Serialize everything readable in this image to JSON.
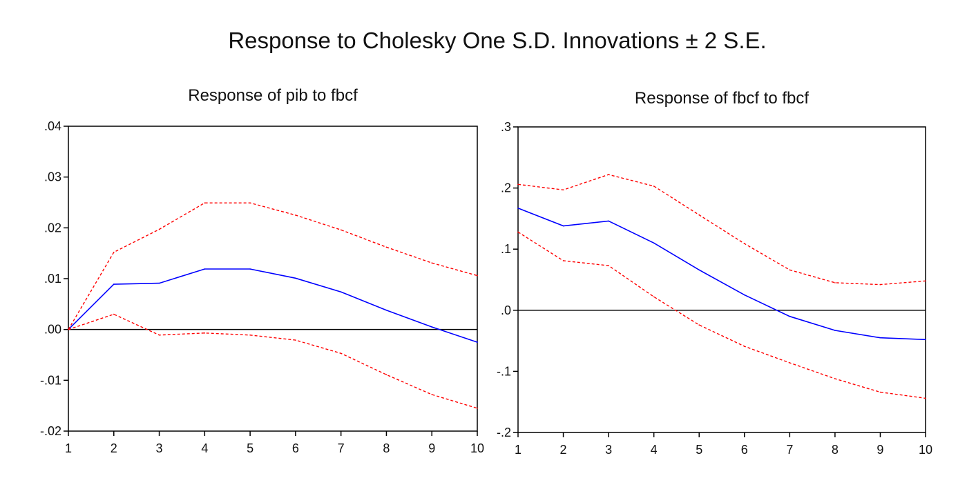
{
  "title": "Response to Cholesky One S.D. Innovations ± 2 S.E.",
  "colors": {
    "response": "#0000ff",
    "bands": "#ff0000",
    "axes": "#000000",
    "zero_line": "#000000"
  },
  "chart_data": [
    {
      "type": "line",
      "title": "Response of pib to fbcf",
      "xlabel": "",
      "ylabel": "",
      "grid": false,
      "x": [
        1,
        2,
        3,
        4,
        5,
        6,
        7,
        8,
        9,
        10
      ],
      "xlim": [
        1,
        10
      ],
      "ylim": [
        -0.02,
        0.04
      ],
      "yticks": [
        0.04,
        0.03,
        0.02,
        0.01,
        0.0,
        -0.01,
        -0.02
      ],
      "ytick_labels": [
        ".04",
        ".03",
        ".02",
        ".01",
        ".00",
        "-.01",
        "-.02"
      ],
      "xtick_labels": [
        "1",
        "2",
        "3",
        "4",
        "5",
        "6",
        "7",
        "8",
        "9",
        "10"
      ],
      "zero_line": 0,
      "series": [
        {
          "role": "response",
          "style": "solid",
          "color": "#0000ff",
          "values": [
            0.0,
            0.0089,
            0.0091,
            0.0119,
            0.0119,
            0.0101,
            0.0074,
            0.0038,
            0.0005,
            -0.0025
          ]
        },
        {
          "role": "upper",
          "style": "dashed",
          "color": "#ff0000",
          "values": [
            0.0,
            0.0152,
            0.0197,
            0.0249,
            0.0249,
            0.0225,
            0.0196,
            0.0162,
            0.0131,
            0.0106
          ]
        },
        {
          "role": "lower",
          "style": "dashed",
          "color": "#ff0000",
          "values": [
            0.0,
            0.003,
            -0.0011,
            -0.0007,
            -0.0011,
            -0.0021,
            -0.0047,
            -0.0089,
            -0.0128,
            -0.0155
          ]
        }
      ]
    },
    {
      "type": "line",
      "title": "Response of fbcf to fbcf",
      "xlabel": "",
      "ylabel": "",
      "grid": false,
      "x": [
        1,
        2,
        3,
        4,
        5,
        6,
        7,
        8,
        9,
        10
      ],
      "xlim": [
        1,
        10
      ],
      "ylim": [
        -0.2,
        0.3
      ],
      "yticks": [
        0.3,
        0.2,
        0.1,
        0.0,
        -0.1,
        -0.2
      ],
      "ytick_labels": [
        ".3",
        ".2",
        ".1",
        ".0",
        "-.1",
        "-.2"
      ],
      "xtick_labels": [
        "1",
        "2",
        "3",
        "4",
        "5",
        "6",
        "7",
        "8",
        "9",
        "10"
      ],
      "zero_line": 0,
      "series": [
        {
          "role": "response",
          "style": "solid",
          "color": "#0000ff",
          "values": [
            0.167,
            0.138,
            0.146,
            0.11,
            0.066,
            0.025,
            -0.01,
            -0.033,
            -0.045,
            -0.048
          ]
        },
        {
          "role": "upper",
          "style": "dashed",
          "color": "#ff0000",
          "values": [
            0.206,
            0.197,
            0.222,
            0.203,
            0.156,
            0.109,
            0.066,
            0.045,
            0.042,
            0.048
          ]
        },
        {
          "role": "lower",
          "style": "dashed",
          "color": "#ff0000",
          "values": [
            0.128,
            0.081,
            0.073,
            0.022,
            -0.024,
            -0.059,
            -0.086,
            -0.112,
            -0.134,
            -0.144
          ]
        }
      ]
    }
  ]
}
